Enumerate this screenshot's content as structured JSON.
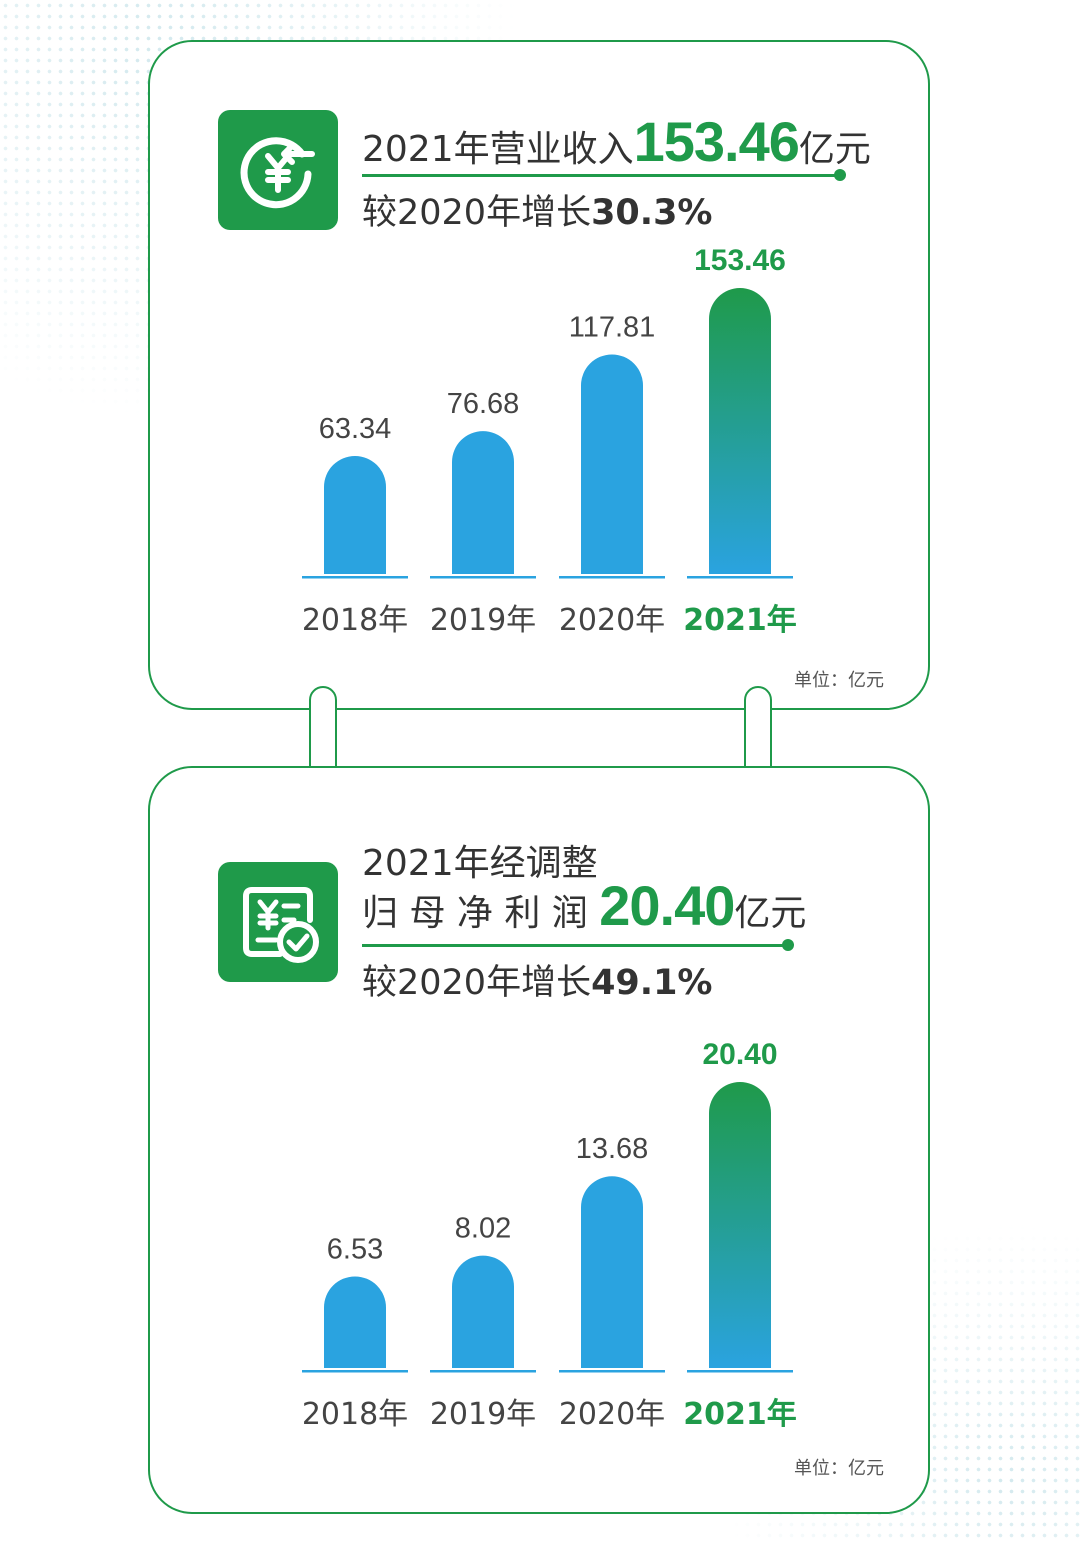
{
  "revenue": {
    "headline_prefix": "2021年营业收入",
    "headline_value": "153.46",
    "headline_unit": "亿元",
    "growth_prefix": "较2020年增长",
    "growth_value": "30.3%",
    "unit_note": "单位：亿元",
    "icon": "yuan-income-icon"
  },
  "profit": {
    "headline_line1": "2021年经调整",
    "headline_prefix": "归 母 净 利 润",
    "headline_value": "20.40",
    "headline_unit": "亿元",
    "growth_prefix": "较2020年增长",
    "growth_value": "49.1%",
    "unit_note": "单位：亿元",
    "icon": "yuan-document-check-icon"
  },
  "colors": {
    "brand_green": "#1f9a4a",
    "bar_blue": "#2aa3e0",
    "highlight_gradient_top": "#1f9a4a",
    "highlight_gradient_bottom": "#2aa3e0"
  },
  "chart_data": [
    {
      "type": "bar",
      "categories": [
        "2018年",
        "2019年",
        "2020年",
        "2021年"
      ],
      "values": [
        63.34,
        76.68,
        117.81,
        153.46
      ],
      "value_labels": [
        "63.34",
        "76.68",
        "117.81",
        "153.46"
      ],
      "highlight_index": 3,
      "unit": "单位：亿元",
      "title": "",
      "xlabel": "",
      "ylabel": "",
      "ylim": [
        0,
        153.46
      ],
      "grid": false
    },
    {
      "type": "bar",
      "categories": [
        "2018年",
        "2019年",
        "2020年",
        "2021年"
      ],
      "values": [
        6.53,
        8.02,
        13.68,
        20.4
      ],
      "value_labels": [
        "6.53",
        "8.02",
        "13.68",
        "20.40"
      ],
      "highlight_index": 3,
      "unit": "单位：亿元",
      "title": "",
      "xlabel": "",
      "ylabel": "",
      "ylim": [
        0,
        20.4
      ],
      "grid": false
    }
  ]
}
